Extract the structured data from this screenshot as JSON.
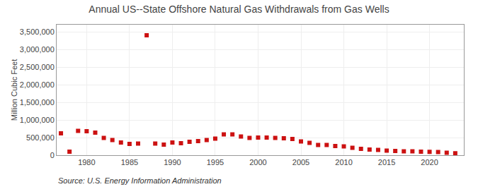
{
  "chart_data": {
    "type": "scatter",
    "title": "Annual US--State Offshore Natural Gas Withdrawals from Gas Wells",
    "ylabel": "Million Cubic Feet",
    "annotations": [
      "Source: U.S. Energy Information Administration"
    ],
    "x": [
      1977,
      1978,
      1979,
      1980,
      1981,
      1982,
      1983,
      1984,
      1985,
      1986,
      1987,
      1988,
      1989,
      1990,
      1991,
      1992,
      1993,
      1994,
      1995,
      1996,
      1997,
      1998,
      1999,
      2000,
      2001,
      2002,
      2003,
      2004,
      2005,
      2006,
      2007,
      2008,
      2009,
      2010,
      2011,
      2012,
      2013,
      2014,
      2015,
      2016,
      2017,
      2018,
      2019,
      2020,
      2021,
      2022,
      2023
    ],
    "values": [
      620000,
      100000,
      690000,
      680000,
      640000,
      490000,
      430000,
      360000,
      320000,
      330000,
      3400000,
      330000,
      300000,
      360000,
      340000,
      380000,
      400000,
      430000,
      470000,
      590000,
      590000,
      530000,
      490000,
      500000,
      500000,
      490000,
      480000,
      460000,
      390000,
      350000,
      290000,
      290000,
      260000,
      250000,
      210000,
      180000,
      160000,
      150000,
      130000,
      120000,
      110000,
      110000,
      100000,
      95000,
      90000,
      70000,
      55000
    ],
    "color": "#cc1111",
    "marker": "square",
    "xlim": [
      1976.5,
      2024
    ],
    "ylim": [
      0,
      3700000
    ],
    "xticks": [
      1980,
      1985,
      1990,
      1995,
      2000,
      2005,
      2010,
      2015,
      2020
    ],
    "yticks": [
      0,
      {
        "value": 500000,
        "label": "500,000"
      },
      {
        "value": 1000000,
        "label": "1,000,000"
      },
      {
        "value": 1500000,
        "label": "1,500,000"
      },
      {
        "value": 2000000,
        "label": "2,000,000"
      },
      {
        "value": 2500000,
        "label": "2,500,000"
      },
      {
        "value": 3000000,
        "label": "3,000,000"
      },
      {
        "value": 3500000,
        "label": "3,500,000"
      }
    ],
    "grid": true
  }
}
